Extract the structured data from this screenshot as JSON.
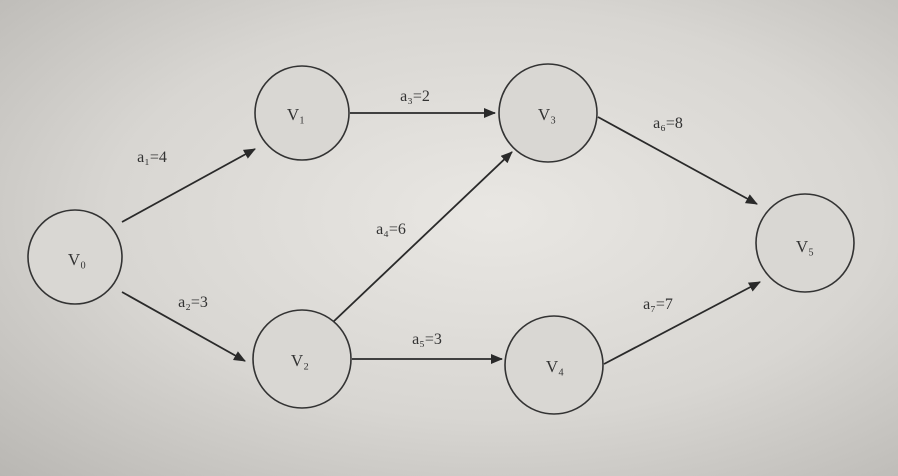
{
  "nodes": [
    {
      "id": "v0",
      "label": "V₀"
    },
    {
      "id": "v1",
      "label": "V₁"
    },
    {
      "id": "v2",
      "label": "V₂"
    },
    {
      "id": "v3",
      "label": "V₃"
    },
    {
      "id": "v4",
      "label": "V₄"
    },
    {
      "id": "v5",
      "label": "V₅"
    }
  ],
  "edges": [
    {
      "id": "a1",
      "from": "v0",
      "to": "v1",
      "label": "a₁=4"
    },
    {
      "id": "a2",
      "from": "v0",
      "to": "v2",
      "label": "a₂=3"
    },
    {
      "id": "a3",
      "from": "v1",
      "to": "v3",
      "label": "a₃=2"
    },
    {
      "id": "a4",
      "from": "v2",
      "to": "v3",
      "label": "a₄=6"
    },
    {
      "id": "a5",
      "from": "v2",
      "to": "v4",
      "label": "a₅=3"
    },
    {
      "id": "a6",
      "from": "v3",
      "to": "v5",
      "label": "a₆=8"
    },
    {
      "id": "a7",
      "from": "v4",
      "to": "v5",
      "label": "a₇=7"
    }
  ]
}
